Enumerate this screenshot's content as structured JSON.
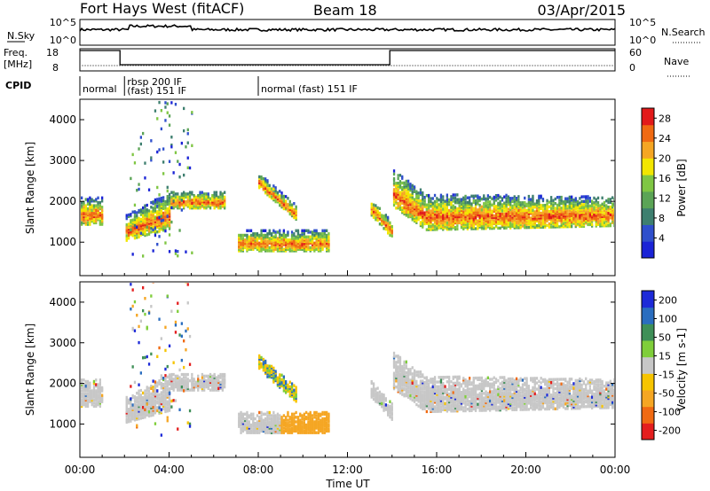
{
  "header": {
    "station": "Fort Hays West (fitACF)",
    "beam": "Beam 18",
    "date": "03/Apr/2015"
  },
  "colors": {
    "power_scale": [
      "#1a23d6",
      "#2f4fcc",
      "#3e7f6f",
      "#5ba456",
      "#7fc643",
      "#f2e600",
      "#f5a623",
      "#f06a12",
      "#e21a1a"
    ],
    "velocity_scale": [
      "#e41e1e",
      "#f06a12",
      "#f5a623",
      "#f6c400",
      "#c7c7c7",
      "#7fce3a",
      "#3e8f57",
      "#2a6dbf",
      "#1d2ad8"
    ]
  },
  "top_panels": {
    "nsky_label": "N.Sky",
    "nsky_ticks": [
      "10^5",
      "10^0"
    ],
    "nsearch_label": "N.Search",
    "freq_label": "Freq.",
    "freq_unit": "[MHz]",
    "freq_ticks": [
      "18",
      "8"
    ],
    "nave_label": "Nave",
    "nave_ticks": [
      "60",
      "0"
    ],
    "cpid_label": "CPID",
    "cpid_segments": [
      {
        "label": "normal",
        "start_hour": 0.0
      },
      {
        "label": "rbsp 200 IF",
        "start_hour": 2.0
      },
      {
        "label": "(fast) 151 IF",
        "start_hour": 2.0
      },
      {
        "label": "normal (fast) 151 IF",
        "start_hour": 8.0
      }
    ]
  },
  "chart_data": [
    {
      "type": "heatmap",
      "title": "",
      "ylabel": "Slant Range [km]",
      "xlabel": "Time UT",
      "x_range_hours": [
        0,
        24
      ],
      "ylim": [
        180,
        4500
      ],
      "y_ticks": [
        1000,
        2000,
        3000,
        4000
      ],
      "colorbar_label": "Power [dB]",
      "colorbar_ticks": [
        4,
        8,
        12,
        16,
        20,
        24,
        28
      ],
      "colorbar_range": [
        0,
        30
      ],
      "features": [
        {
          "name": "early band",
          "t_start": 0.0,
          "t_end": 1.0,
          "range_low": 1400,
          "range_high": 2050
        },
        {
          "name": "band after 2h",
          "t_start": 2.0,
          "t_end": 4.0,
          "range_low": 1000,
          "range_high": 1600
        },
        {
          "name": "mid band",
          "t_start": 4.0,
          "t_end": 6.5,
          "range_low": 1800,
          "range_high": 2200
        },
        {
          "name": "oblique band",
          "t_start": 8.0,
          "t_end": 9.7,
          "range_low": 1500,
          "range_high": 2400
        },
        {
          "name": "low band",
          "t_start": 7.0,
          "t_end": 11.2,
          "range_low": 750,
          "range_high": 1250
        },
        {
          "name": "return near 13h",
          "t_start": 13.0,
          "t_end": 14.0,
          "range_low": 1000,
          "range_high": 1700
        },
        {
          "name": "afternoon band",
          "t_start": 14.0,
          "t_end": 24.0,
          "range_low": 1300,
          "range_high": 2500
        }
      ]
    },
    {
      "type": "heatmap",
      "title": "",
      "ylabel": "Slant Range [km]",
      "xlabel": "Time UT",
      "x_range_hours": [
        0,
        24
      ],
      "x_ticks": [
        "00:00",
        "04:00",
        "08:00",
        "12:00",
        "16:00",
        "20:00",
        "00:00"
      ],
      "ylim": [
        180,
        4500
      ],
      "y_ticks": [
        1000,
        2000,
        3000,
        4000
      ],
      "colorbar_label": "Velocity [m s-1]",
      "colorbar_ticks": [
        -200,
        -100,
        -50,
        -15,
        15,
        50,
        100,
        200
      ],
      "colorbar_range": [
        -250,
        250
      ]
    }
  ]
}
